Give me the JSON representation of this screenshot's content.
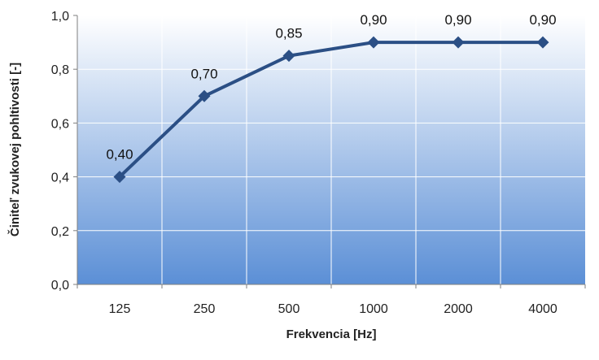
{
  "chart_data": {
    "type": "line",
    "title": "",
    "xlabel": "Frekvencia [Hz]",
    "ylabel": "Činiteľ zvukovej pohltivosti  [-]",
    "categories": [
      "125",
      "250",
      "500",
      "1000",
      "2000",
      "4000"
    ],
    "series": [
      {
        "values": [
          0.4,
          0.7,
          0.85,
          0.9,
          0.9,
          0.9
        ],
        "data_labels": [
          "0,40",
          "0,70",
          "0,85",
          "0,90",
          "0,90",
          "0,90"
        ]
      }
    ],
    "ylim": [
      0,
      1.0
    ],
    "yticks": [
      0.0,
      0.2,
      0.4,
      0.6,
      0.8,
      1.0
    ],
    "ytick_labels": [
      "0,0",
      "0,2",
      "0,4",
      "0,6",
      "0,8",
      "1,0"
    ],
    "grid": true,
    "legend": "none",
    "marker": "diamond",
    "colors": {
      "line": "#2b4f85",
      "marker": "#2b4f85",
      "background_top": "#ffffff",
      "background_bottom": "#5b8fd6",
      "grid": "#ffffff"
    }
  }
}
